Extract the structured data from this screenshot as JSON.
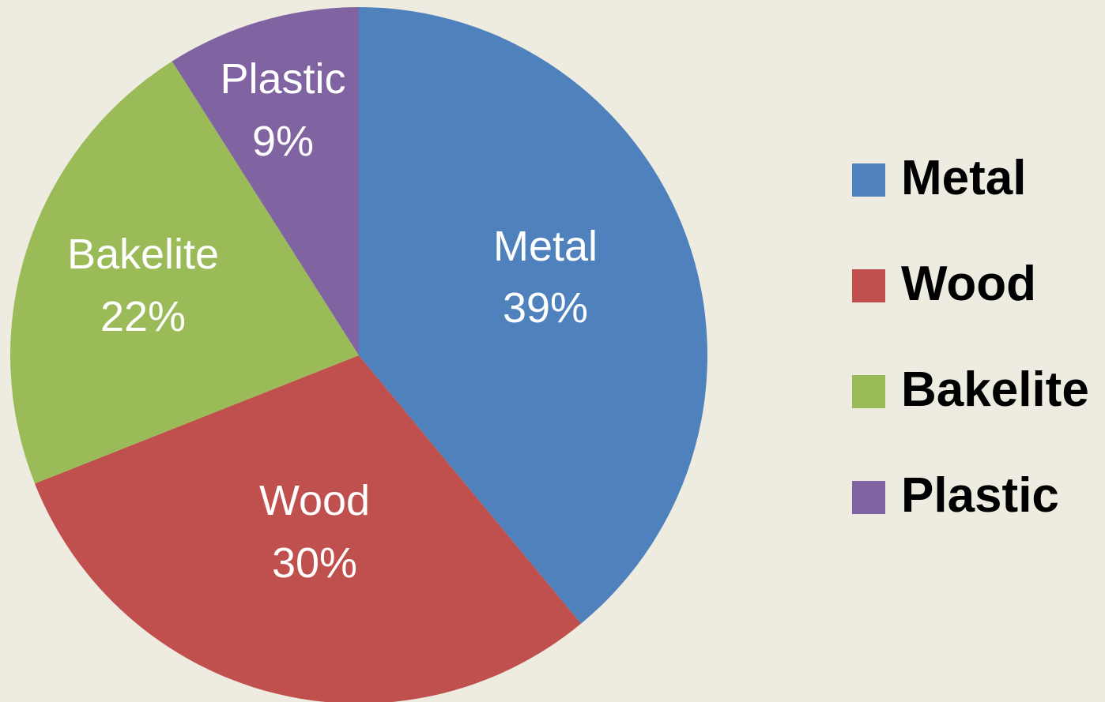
{
  "chart_data": {
    "type": "pie",
    "slices": [
      {
        "label": "Metal",
        "value": 39,
        "percent_label": "39%",
        "color": "#4F81BD"
      },
      {
        "label": "Wood",
        "value": 30,
        "percent_label": "30%",
        "color": "#C0504D"
      },
      {
        "label": "Bakelite",
        "value": 22,
        "percent_label": "22%",
        "color": "#9BBB59"
      },
      {
        "label": "Plastic",
        "value": 9,
        "percent_label": "9%",
        "color": "#8064A2"
      }
    ],
    "legend": {
      "position": "right",
      "items": [
        "Metal",
        "Wood",
        "Bakelite",
        "Plastic"
      ]
    },
    "start": "12 o'clock",
    "direction": "clockwise"
  },
  "colors": {
    "background": "#EEEBE1",
    "label_text": "#FFFFFF",
    "legend_text": "#000000"
  }
}
